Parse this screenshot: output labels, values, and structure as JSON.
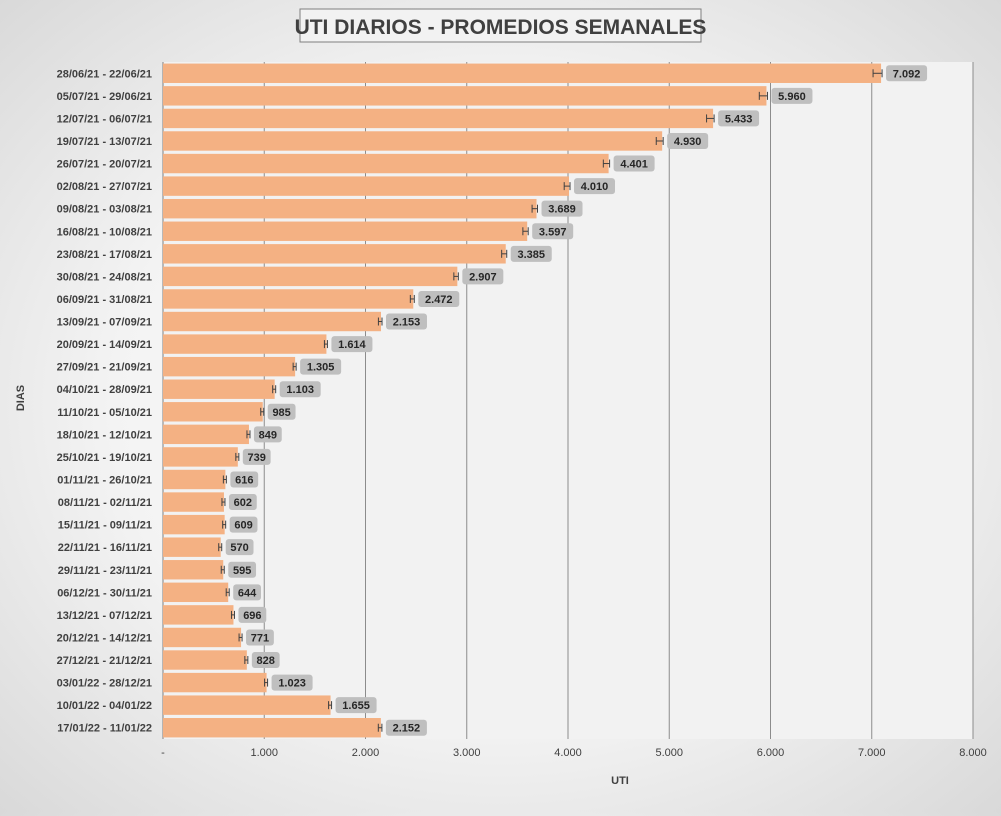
{
  "chart_data": {
    "type": "bar",
    "orientation": "horizontal",
    "title": "UTI DIARIOS - PROMEDIOS SEMANALES",
    "xlabel": "UTI",
    "ylabel": "DIAS",
    "xlim": [
      0,
      8000
    ],
    "x_ticks": [
      0,
      1000,
      2000,
      3000,
      4000,
      5000,
      6000,
      7000,
      8000
    ],
    "x_tick_labels": [
      "-",
      "1.000",
      "2.000",
      "3.000",
      "4.000",
      "5.000",
      "6.000",
      "7.000",
      "8.000"
    ],
    "grid": true,
    "error_bars": true,
    "bar_color": "#f4b183",
    "label_bg_color": "#bfbfbf",
    "categories": [
      "28/06/21 - 22/06/21",
      "05/07/21 - 29/06/21",
      "12/07/21 - 06/07/21",
      "19/07/21 - 13/07/21",
      "26/07/21 - 20/07/21",
      "02/08/21 - 27/07/21",
      "09/08/21 - 03/08/21",
      "16/08/21 - 10/08/21",
      "23/08/21 - 17/08/21",
      "30/08/21 - 24/08/21",
      "06/09/21 - 31/08/21",
      "13/09/21 - 07/09/21",
      "20/09/21 - 14/09/21",
      "27/09/21 - 21/09/21",
      "04/10/21 - 28/09/21",
      "11/10/21 - 05/10/21",
      "18/10/21 - 12/10/21",
      "25/10/21 - 19/10/21",
      "01/11/21 - 26/10/21",
      "08/11/21 - 02/11/21",
      "15/11/21 - 09/11/21",
      "22/11/21 - 16/11/21",
      "29/11/21 - 23/11/21",
      "06/12/21 - 30/11/21",
      "13/12/21 - 07/12/21",
      "20/12/21 - 14/12/21",
      "27/12/21 - 21/12/21",
      "03/01/22 - 28/12/21",
      "10/01/22 - 04/01/22",
      "17/01/22 - 11/01/22"
    ],
    "values": [
      7092,
      5960,
      5433,
      4930,
      4401,
      4010,
      3689,
      3597,
      3385,
      2907,
      2472,
      2153,
      1614,
      1305,
      1103,
      985,
      849,
      739,
      616,
      602,
      609,
      570,
      595,
      644,
      696,
      771,
      828,
      1023,
      1655,
      2152
    ],
    "value_labels": [
      "7.092",
      "5.960",
      "5.433",
      "4.930",
      "4.401",
      "4.010",
      "3.689",
      "3.597",
      "3.385",
      "2.907",
      "2.472",
      "2.153",
      "1.614",
      "1.305",
      "1.103",
      "985",
      "849",
      "739",
      "616",
      "602",
      "609",
      "570",
      "595",
      "644",
      "696",
      "771",
      "828",
      "1.023",
      "1.655",
      "2.152"
    ]
  }
}
